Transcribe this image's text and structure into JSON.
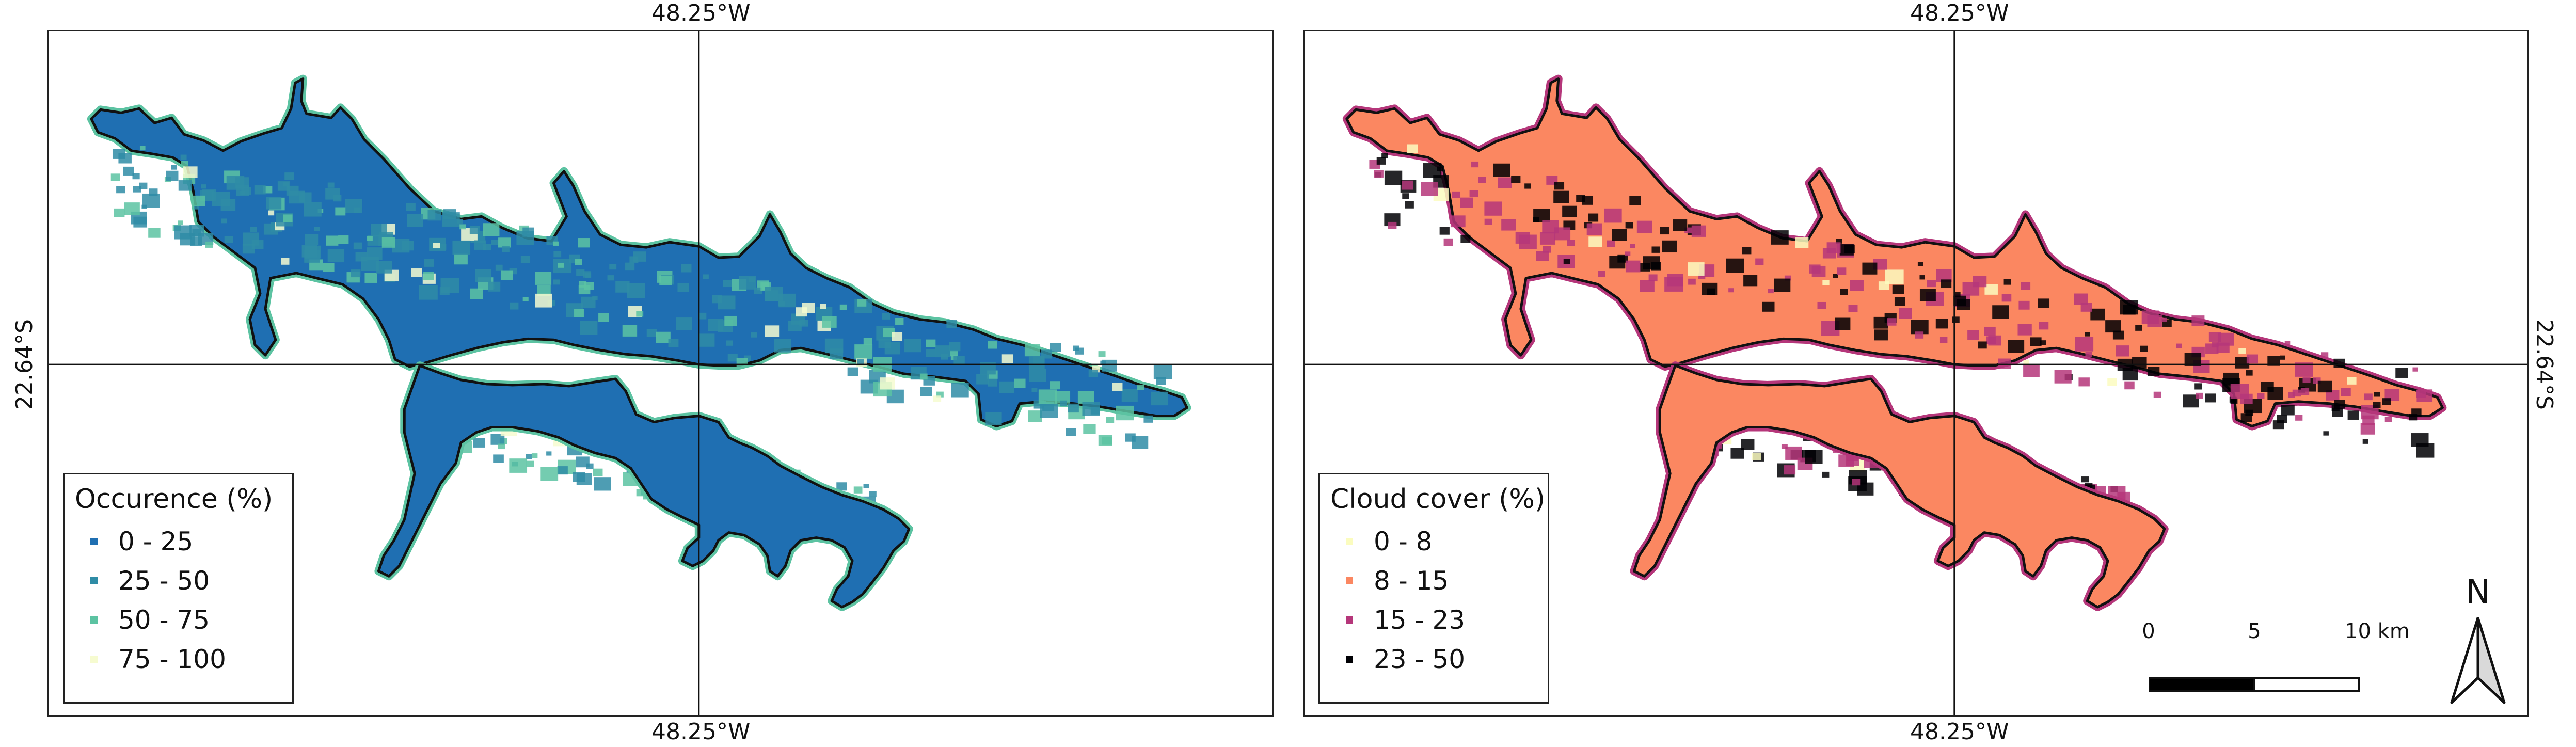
{
  "coords": {
    "lon_label": "48.25°W",
    "lat_label": "22.64°S"
  },
  "left_map": {
    "legend": {
      "title": "Occurence (%)",
      "items": [
        {
          "label": "0 - 25",
          "color": "#1f6fb2"
        },
        {
          "label": "25 - 50",
          "color": "#2f8ca6"
        },
        {
          "label": "50 - 75",
          "color": "#5cc3a2"
        },
        {
          "label": "75 - 100",
          "color": "#f6fbd0"
        }
      ]
    },
    "water_fill": "#1f6fb2",
    "halo_color": "#5cc3a2"
  },
  "right_map": {
    "legend": {
      "title": "Cloud cover (%)",
      "items": [
        {
          "label": "0 - 8",
          "color": "#fbfcbf"
        },
        {
          "label": "8 - 15",
          "color": "#fb8761"
        },
        {
          "label": "15 - 23",
          "color": "#b5367a"
        },
        {
          "label": "23 - 50",
          "color": "#000004"
        }
      ]
    },
    "water_fill": "#fb8761",
    "halo_color": "#b5367a"
  },
  "scale_bar": {
    "ticks": [
      "0",
      "5",
      "10 km"
    ]
  },
  "north_arrow": {
    "label": "N"
  }
}
